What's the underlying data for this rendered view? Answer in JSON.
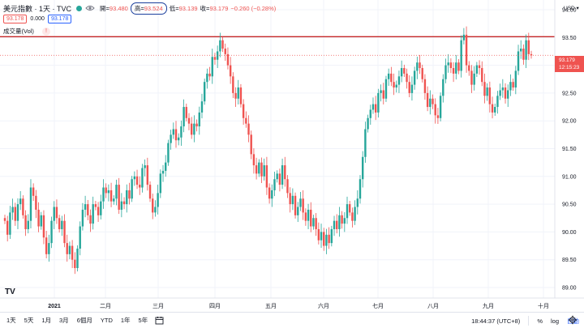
{
  "legend": {
    "title": "美元指數 · 1天 · TVC",
    "open_label": "開",
    "open_value": "93.480",
    "high_label": "高",
    "high_value": "93.524",
    "low_label": "低",
    "low_value": "93.139",
    "close_label": "收",
    "close_value": "93.179",
    "change": "−0.260 (−0.28%)",
    "status_color": "#26a69a",
    "eye_icon": "eye-icon"
  },
  "price_boxes": {
    "bid": "93.178",
    "spread": "0.000",
    "ask": "93.178"
  },
  "volume": {
    "label": "成交量(Vol)",
    "warning": "!"
  },
  "axis": {
    "currency": "USD",
    "price_ticks": [
      "94.00",
      "93.50",
      "93.00",
      "92.50",
      "92.00",
      "91.50",
      "91.00",
      "90.50",
      "90.00",
      "89.50",
      "89.00"
    ],
    "price_tick_values": [
      94.0,
      93.5,
      93.0,
      92.5,
      92.0,
      91.5,
      91.0,
      90.5,
      90.0,
      89.5,
      89.0
    ],
    "time_labels": [
      "2021",
      "二月",
      "三月",
      "四月",
      "五月",
      "六月",
      "七月",
      "八月",
      "九月",
      "十月"
    ],
    "time_positions_days": [
      0,
      31,
      59,
      90,
      120,
      151,
      181,
      212,
      243,
      273
    ],
    "bold_time_label": "2021"
  },
  "last_price_tag": {
    "price": "93.179",
    "countdown": "12:15:23",
    "color": "#ef5350"
  },
  "horizontal_line": {
    "value": 93.5,
    "color": "#c62828"
  },
  "bottom": {
    "ranges": [
      "1天",
      "5天",
      "1月",
      "3月",
      "6個月",
      "YTD",
      "1年",
      "5年"
    ],
    "calendar_icon": "calendar-icon",
    "clock": "18:44:37 (UTC+8)",
    "percent": "%",
    "log": "log",
    "auto": "自動",
    "gear_icon": "gear-icon"
  },
  "logo": "TV",
  "chart_data": {
    "type": "candlestick",
    "up_color": "#26a69a",
    "down_color": "#ef5350",
    "ylim": [
      88.9,
      94.1
    ],
    "closes": [
      90.2,
      89.95,
      90.35,
      90.45,
      90.2,
      90.5,
      90.6,
      90.3,
      90.05,
      90.2,
      90.8,
      90.65,
      90.4,
      90.1,
      90.3,
      89.9,
      89.6,
      89.8,
      90.2,
      90.45,
      90.25,
      90.05,
      90.2,
      89.8,
      89.6,
      89.75,
      89.5,
      89.35,
      89.7,
      90.1,
      90.4,
      90.5,
      90.3,
      90.15,
      90.5,
      90.45,
      90.3,
      90.55,
      90.8,
      90.7,
      90.75,
      90.55,
      90.6,
      90.85,
      90.4,
      90.55,
      90.5,
      90.75,
      90.6,
      90.95,
      91.0,
      90.85,
      90.8,
      91.15,
      91.2,
      90.85,
      90.6,
      90.35,
      90.45,
      90.7,
      91.05,
      91.1,
      91.25,
      91.6,
      91.75,
      91.85,
      91.65,
      91.7,
      91.9,
      92.25,
      92.05,
      91.95,
      91.75,
      91.95,
      91.9,
      92.15,
      92.35,
      92.7,
      92.85,
      92.8,
      93.15,
      93.1,
      93.25,
      93.45,
      93.3,
      93.2,
      93.0,
      92.8,
      92.5,
      92.4,
      92.6,
      92.3,
      92.05,
      91.95,
      91.75,
      91.4,
      91.2,
      91.05,
      91.25,
      91.0,
      91.2,
      90.8,
      90.6,
      90.75,
      90.95,
      91.05,
      90.85,
      91.2,
      90.95,
      90.7,
      90.5,
      90.65,
      90.3,
      90.45,
      90.6,
      90.35,
      90.2,
      90.4,
      90.1,
      90.25,
      90.05,
      89.85,
      90.0,
      89.75,
      89.95,
      89.8,
      90.05,
      90.2,
      90.05,
      90.3,
      90.15,
      90.25,
      90.5,
      90.35,
      90.2,
      90.45,
      90.6,
      90.95,
      91.35,
      91.85,
      92.05,
      92.2,
      92.3,
      92.15,
      92.5,
      92.55,
      92.4,
      92.75,
      92.85,
      92.7,
      92.6,
      92.65,
      92.8,
      92.95,
      92.85,
      92.7,
      92.5,
      92.65,
      92.9,
      93.05,
      92.95,
      92.75,
      92.5,
      92.25,
      92.4,
      92.3,
      92.1,
      92.05,
      92.45,
      92.75,
      93.0,
      93.05,
      92.95,
      92.85,
      93.05,
      92.9,
      93.45,
      93.55,
      93.0,
      92.9,
      92.65,
      92.85,
      93.0,
      92.95,
      92.7,
      92.45,
      92.6,
      92.3,
      92.15,
      92.25,
      92.45,
      92.55,
      92.6,
      92.4,
      92.55,
      92.7,
      92.6,
      92.9,
      93.25,
      93.3,
      93.1,
      93.45,
      93.2,
      93.18
    ]
  }
}
